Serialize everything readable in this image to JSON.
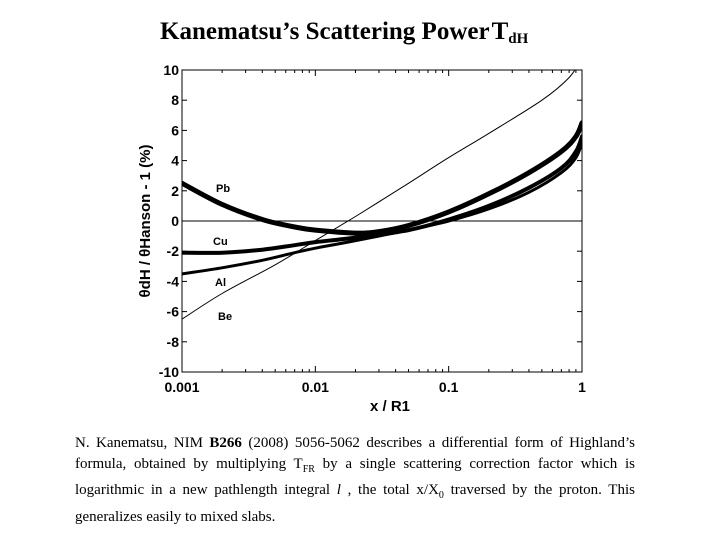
{
  "title": {
    "text": "Kanematsu’s Scattering Power",
    "symbol": "T",
    "subscript": "dH"
  },
  "chart_data": {
    "type": "line",
    "xscale": "log",
    "xlim": [
      0.001,
      1
    ],
    "ylim": [
      -10,
      10
    ],
    "xlabel": "x / R1",
    "ylabel": "θdH / θHanson - 1 (%)",
    "xticks": [
      0.001,
      0.01,
      0.1,
      1
    ],
    "xtick_labels": [
      "0.001",
      "0.01",
      "0.1",
      "1"
    ],
    "yticks": [
      10,
      8,
      6,
      4,
      2,
      0,
      -2,
      -4,
      -6,
      -8,
      -10
    ],
    "ytick_labels": [
      "10",
      "8",
      "6",
      "4",
      "2",
      "0",
      "-2",
      "-4",
      "-6",
      "-8",
      "-10"
    ],
    "zero_line": 0,
    "series": [
      {
        "name": "Pb",
        "width": 5,
        "x": [
          0.001,
          0.002,
          0.004,
          0.007,
          0.01,
          0.02,
          0.03,
          0.05,
          0.1,
          0.2,
          0.4,
          0.7,
          0.9,
          1.0
        ],
        "y": [
          2.5,
          1.1,
          0.1,
          -0.4,
          -0.6,
          -0.8,
          -0.7,
          -0.3,
          0.6,
          1.8,
          3.2,
          4.6,
          5.6,
          6.5
        ]
      },
      {
        "name": "Cu",
        "width": 4,
        "x": [
          0.001,
          0.002,
          0.004,
          0.007,
          0.01,
          0.02,
          0.05,
          0.1,
          0.2,
          0.4,
          0.7,
          0.9,
          1.0
        ],
        "y": [
          -2.1,
          -2.1,
          -1.9,
          -1.6,
          -1.4,
          -1.1,
          -0.6,
          0.1,
          1.0,
          2.2,
          3.5,
          4.6,
          5.6
        ]
      },
      {
        "name": "Al",
        "width": 3,
        "x": [
          0.001,
          0.002,
          0.004,
          0.007,
          0.01,
          0.02,
          0.05,
          0.1,
          0.2,
          0.4,
          0.7,
          0.9,
          1.0
        ],
        "y": [
          -3.5,
          -3.1,
          -2.6,
          -2.1,
          -1.8,
          -1.3,
          -0.6,
          0.0,
          0.8,
          1.9,
          3.2,
          4.2,
          5.2
        ]
      },
      {
        "name": "Be",
        "width": 1,
        "x": [
          0.001,
          0.002,
          0.005,
          0.01,
          0.02,
          0.05,
          0.1,
          0.2,
          0.5,
          0.8,
          1.0
        ],
        "y": [
          -6.5,
          -4.8,
          -2.9,
          -1.3,
          0.3,
          2.5,
          4.2,
          5.8,
          8.0,
          9.5,
          10.8
        ]
      }
    ],
    "labels": [
      "Pb",
      "Cu",
      "Al",
      "Be"
    ]
  },
  "caption": {
    "p1": "N. Kanematsu, NIM ",
    "vol": "B266",
    "p2": " (2008) 5056-5062 describes a differential form of Highland’s formula, obtained by multiplying T",
    "sub1": "FR",
    "p3": " by a single scattering correction factor which is logarithmic in a new pathlength integral ",
    "ell": "l",
    "p4": " , the total x/X",
    "sub2": "0",
    "p5": " traversed by the proton. This generalizes easily to mixed slabs."
  }
}
